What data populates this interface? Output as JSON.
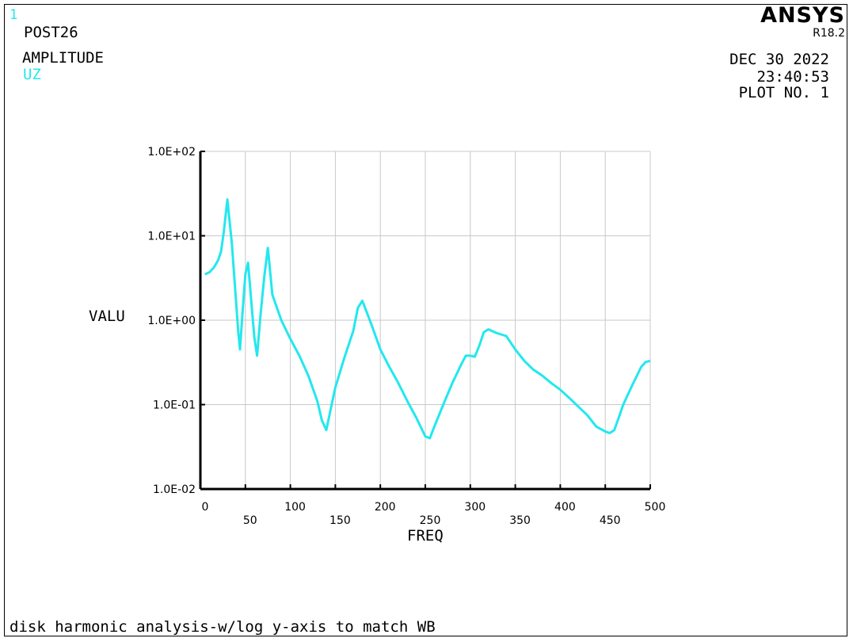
{
  "header": {
    "window_number": "1",
    "processor": "POST26",
    "plot_label": "AMPLITUDE",
    "variable": "UZ",
    "brand": "ANSYS",
    "release": "R18.2",
    "date": "DEC 30 2022",
    "time": "23:40:53",
    "plot_number": "PLOT NO.   1"
  },
  "caption": "disk harmonic analysis-w/log y-axis to match WB",
  "colors": {
    "curve": "#22e8ee",
    "grid": "#c8c8c8",
    "axis": "#000000",
    "background": "#ffffff"
  },
  "chart_data": {
    "type": "line",
    "xlabel": "FREQ",
    "ylabel": "VALU",
    "xlim": [
      0,
      500
    ],
    "ylim": [
      0.01,
      100
    ],
    "yscale": "log",
    "grid": true,
    "x_ticks": [
      0,
      50,
      100,
      150,
      200,
      250,
      300,
      350,
      400,
      450,
      500
    ],
    "x_tick_labels": [
      "0",
      "50",
      "100",
      "150",
      "200",
      "250",
      "300",
      "350",
      "400",
      "450",
      "500"
    ],
    "y_ticks": [
      0.01,
      0.1,
      1,
      10,
      100
    ],
    "y_tick_labels": [
      "1.0E-02",
      "1.0E-01",
      "1.0E+00",
      "1.0E+01",
      "1.0E+02"
    ],
    "series": [
      {
        "x": [
          5,
          10,
          15,
          20,
          23,
          26,
          30,
          35,
          40,
          42,
          44,
          47,
          50,
          53,
          58,
          60,
          63,
          67,
          71,
          75,
          80,
          90,
          100,
          110,
          120,
          130,
          135,
          140,
          145,
          150,
          160,
          170,
          175,
          180,
          190,
          200,
          210,
          220,
          230,
          240,
          250,
          255,
          260,
          270,
          280,
          290,
          295,
          300,
          305,
          310,
          315,
          320,
          330,
          340,
          350,
          360,
          370,
          380,
          390,
          400,
          410,
          420,
          430,
          440,
          450,
          455,
          460,
          465,
          470,
          480,
          490,
          495,
          500
        ],
        "y": [
          3.5,
          3.7,
          4.2,
          5.2,
          6.5,
          11,
          27,
          8,
          1.5,
          0.75,
          0.45,
          1.3,
          3.5,
          4.8,
          1.1,
          0.62,
          0.38,
          1.2,
          3.3,
          7.2,
          2.0,
          1.0,
          0.6,
          0.38,
          0.22,
          0.11,
          0.065,
          0.05,
          0.09,
          0.16,
          0.36,
          0.75,
          1.4,
          1.7,
          0.9,
          0.45,
          0.28,
          0.18,
          0.11,
          0.07,
          0.042,
          0.04,
          0.055,
          0.1,
          0.18,
          0.3,
          0.38,
          0.38,
          0.37,
          0.5,
          0.72,
          0.78,
          0.7,
          0.65,
          0.45,
          0.33,
          0.26,
          0.22,
          0.18,
          0.15,
          0.12,
          0.095,
          0.075,
          0.055,
          0.048,
          0.046,
          0.05,
          0.07,
          0.1,
          0.17,
          0.28,
          0.32,
          0.33
        ]
      }
    ]
  }
}
